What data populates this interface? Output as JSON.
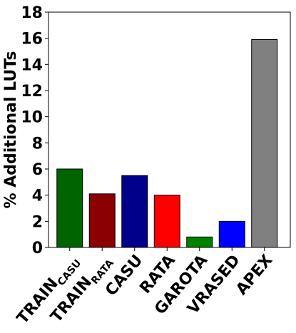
{
  "chart_data": {
    "type": "bar",
    "title": "",
    "xlabel": "",
    "ylabel": "% Additional LUTs",
    "ylim": [
      0,
      18
    ],
    "yticks": [
      0,
      2,
      4,
      6,
      8,
      10,
      12,
      14,
      16,
      18
    ],
    "grid": false,
    "categories": [
      {
        "main": "TRAIN",
        "sub": "CASU"
      },
      {
        "main": "TRAIN",
        "sub": "RATA"
      },
      {
        "main": "CASU",
        "sub": ""
      },
      {
        "main": "RATA",
        "sub": ""
      },
      {
        "main": "GAROTA",
        "sub": ""
      },
      {
        "main": "VRASED",
        "sub": ""
      },
      {
        "main": "APEX",
        "sub": ""
      }
    ],
    "values": [
      6.0,
      4.1,
      5.5,
      4.0,
      0.8,
      2.0,
      15.9
    ],
    "colors": [
      "#006400",
      "#8b0000",
      "#00008b",
      "#ff0000",
      "#008000",
      "#0000ff",
      "#808080"
    ]
  }
}
